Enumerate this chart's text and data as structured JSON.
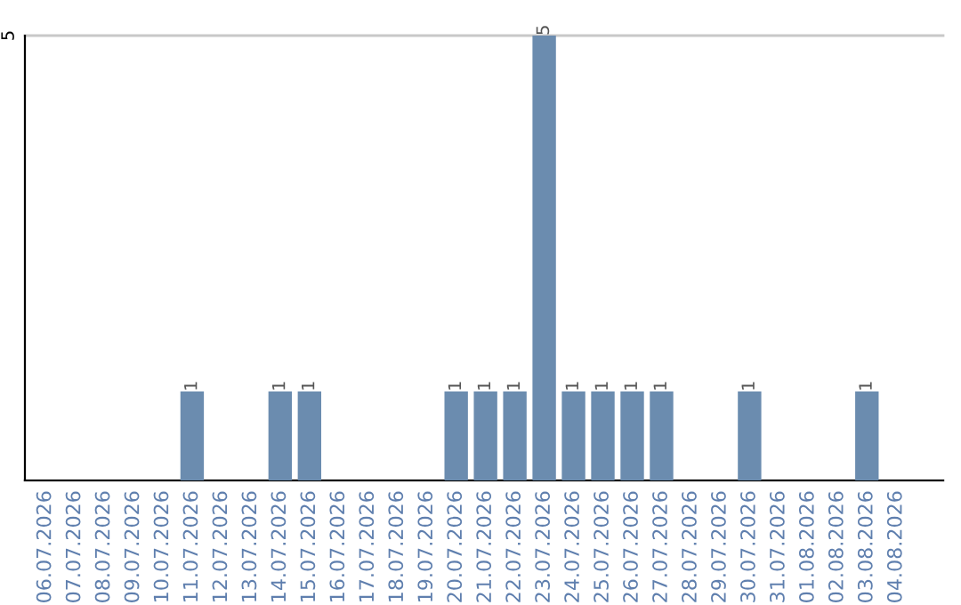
{
  "chart_data": {
    "type": "bar",
    "categories": [
      "06.07.2026",
      "07.07.2026",
      "08.07.2026",
      "09.07.2026",
      "10.07.2026",
      "11.07.2026",
      "12.07.2026",
      "13.07.2026",
      "14.07.2026",
      "15.07.2026",
      "16.07.2026",
      "17.07.2026",
      "18.07.2026",
      "19.07.2026",
      "20.07.2026",
      "21.07.2026",
      "22.07.2026",
      "23.07.2026",
      "24.07.2026",
      "25.07.2026",
      "26.07.2026",
      "27.07.2026",
      "28.07.2026",
      "29.07.2026",
      "30.07.2026",
      "31.07.2026",
      "01.08.2026",
      "02.08.2026",
      "03.08.2026",
      "04.08.2026"
    ],
    "values": [
      0,
      0,
      0,
      0,
      0,
      1,
      0,
      0,
      1,
      1,
      0,
      0,
      0,
      0,
      1,
      1,
      1,
      5,
      1,
      1,
      1,
      1,
      0,
      0,
      1,
      0,
      0,
      0,
      1,
      0
    ],
    "value_labels": [
      null,
      null,
      null,
      null,
      null,
      "1",
      null,
      null,
      "1",
      "1",
      null,
      null,
      null,
      null,
      "1",
      "1",
      "1",
      "5",
      "1",
      "1",
      "1",
      "1",
      null,
      null,
      "1",
      null,
      null,
      null,
      "1",
      null
    ],
    "color": "#6b8caf",
    "ylim": [
      0,
      5
    ],
    "yticks": [
      {
        "value": 0,
        "label": null
      },
      5
    ],
    "grid": "y"
  }
}
